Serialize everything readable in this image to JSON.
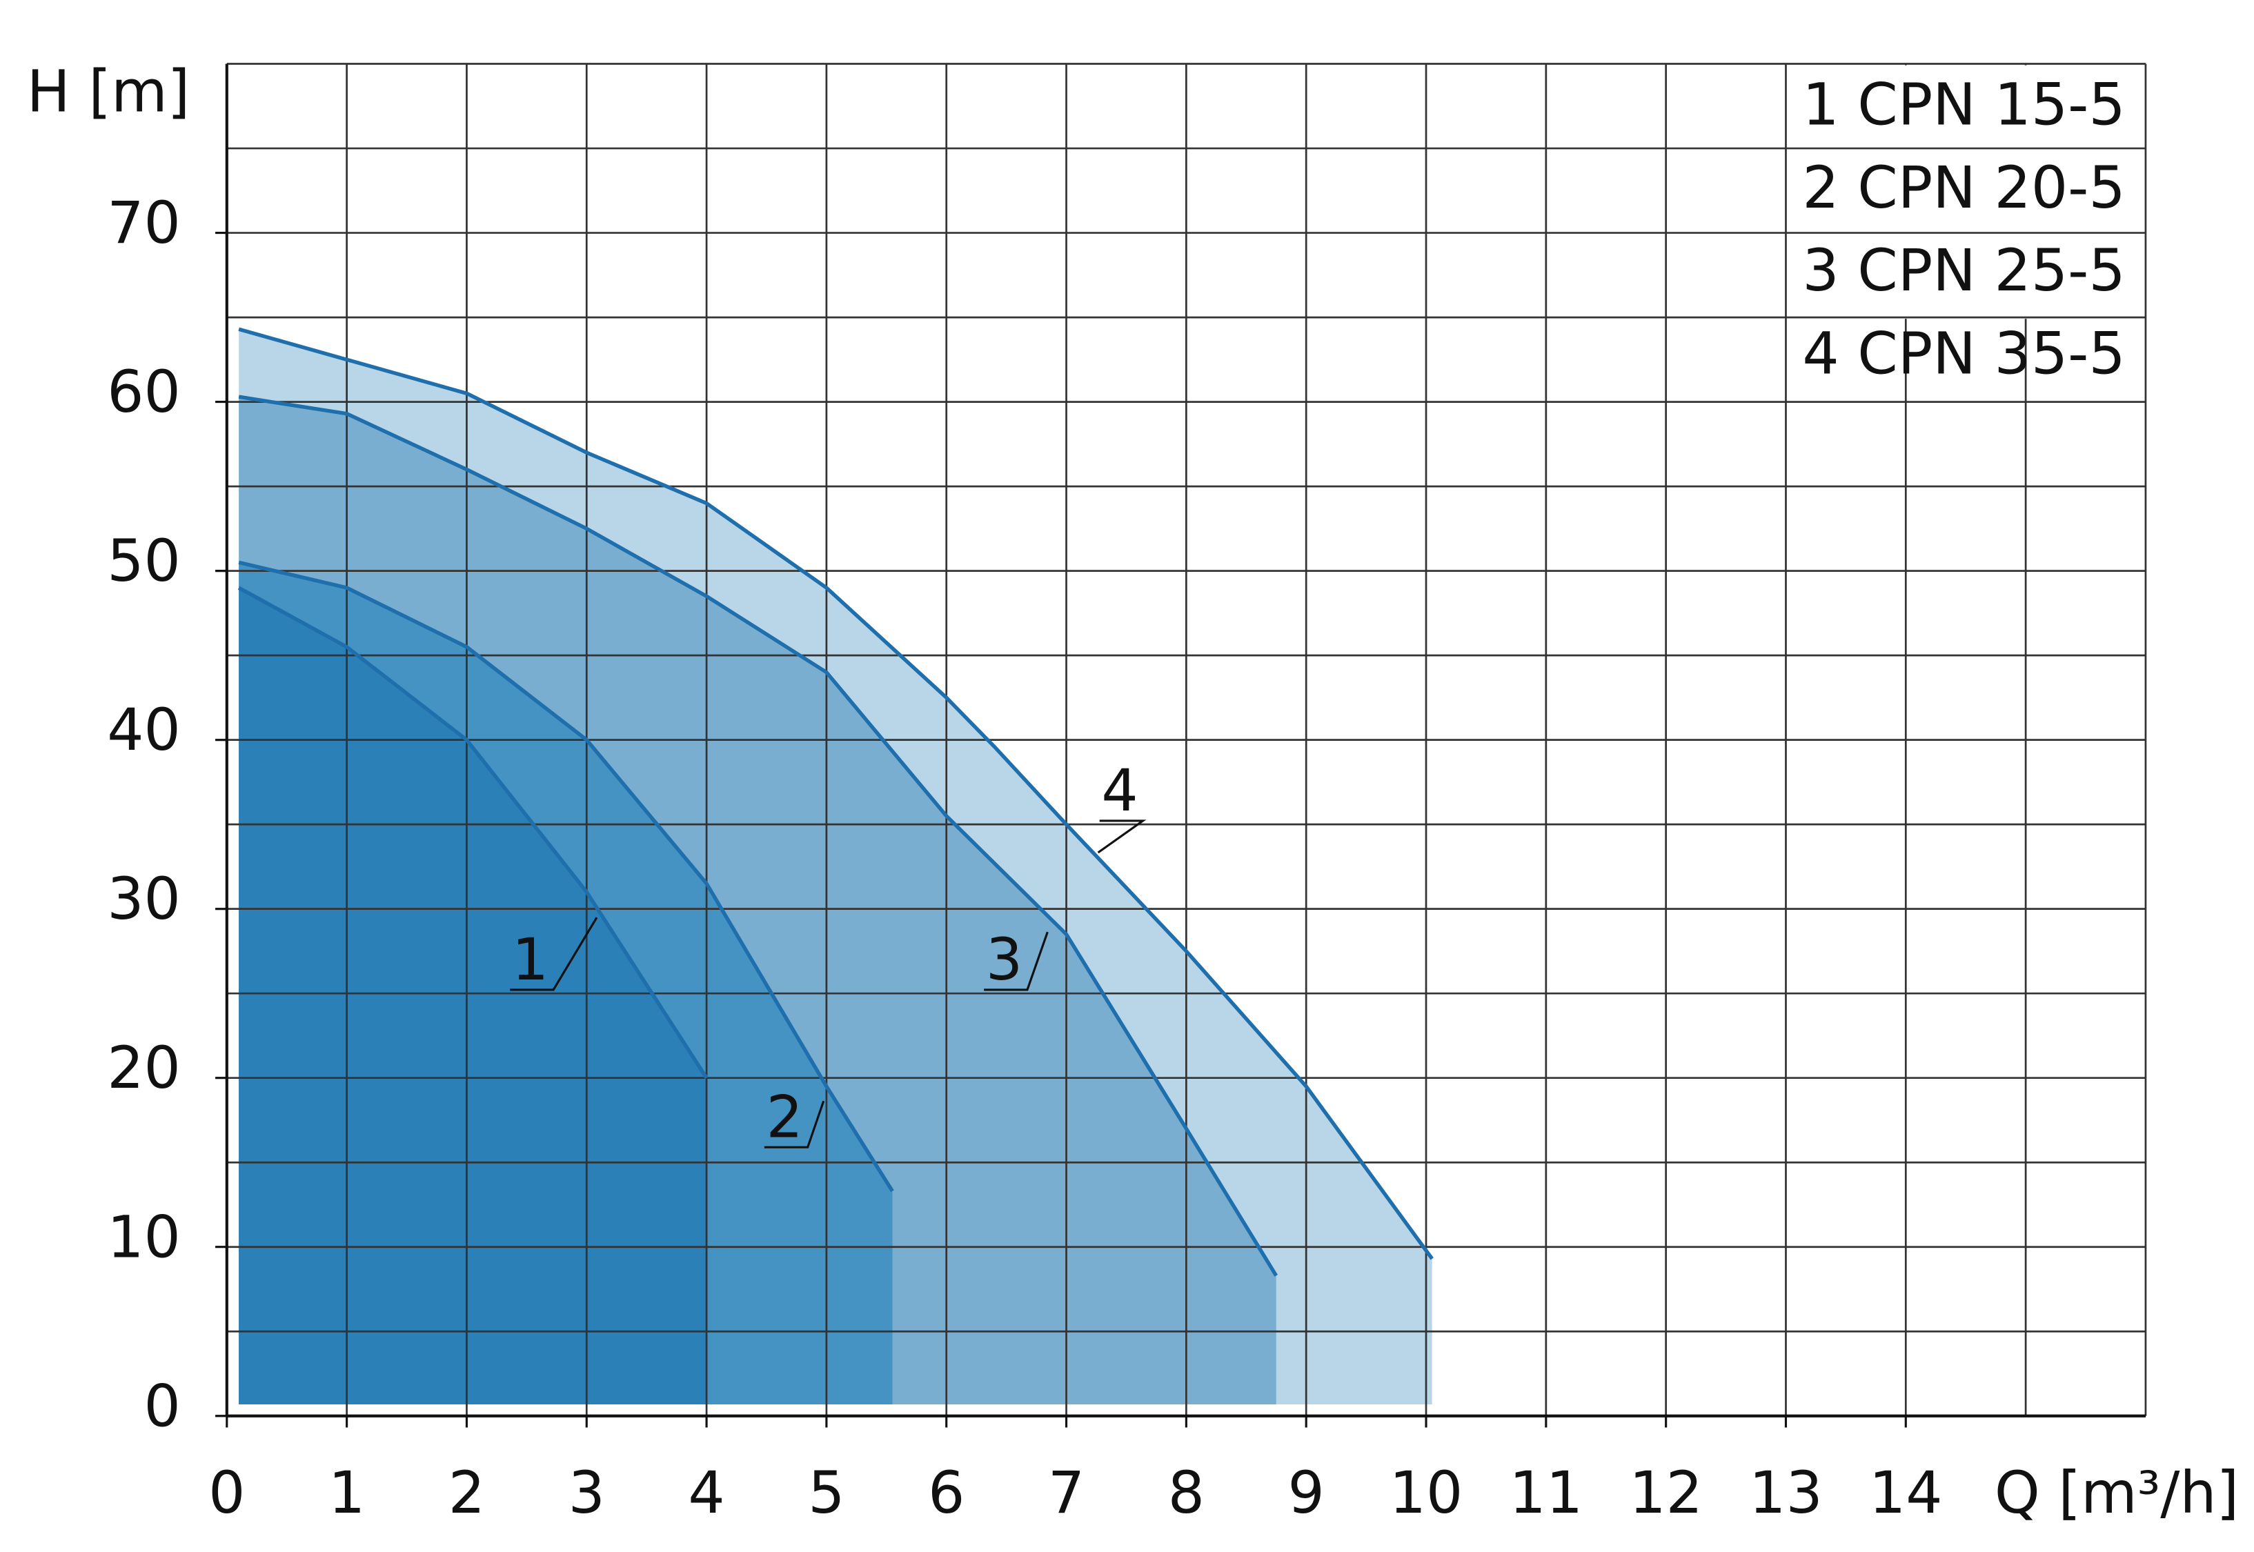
{
  "chart_data": {
    "type": "area",
    "y_label": "H [m]",
    "x_label": "Q [m³/h]",
    "xlim": [
      0,
      16
    ],
    "xticks": [
      0,
      1,
      2,
      3,
      4,
      5,
      6,
      7,
      8,
      9,
      10,
      11,
      12,
      13,
      14
    ],
    "xgrid": [
      0,
      1,
      2,
      3,
      4,
      5,
      6,
      7,
      8,
      9,
      10,
      11,
      12,
      13,
      14,
      15,
      16
    ],
    "ylim": [
      0,
      80
    ],
    "yticks": [
      0,
      10,
      20,
      30,
      40,
      50,
      60,
      70
    ],
    "ygrid": [
      0,
      5,
      10,
      15,
      20,
      25,
      30,
      35,
      40,
      45,
      50,
      55,
      60,
      65,
      70,
      75,
      80
    ],
    "grid": true,
    "legend": "top-right",
    "line_color": "#1f6fad",
    "series": [
      {
        "name": "1 CPN 15-5",
        "curve_label": "1",
        "color": "#2a80b7",
        "x": [
          0.1,
          1,
          2,
          3,
          4
        ],
        "values": [
          49,
          45.5,
          40,
          31,
          20
        ]
      },
      {
        "name": "2 CPN 20-5",
        "curve_label": "2",
        "color": "#4593c3",
        "x": [
          0.1,
          1,
          2,
          3,
          4,
          5,
          5.55
        ],
        "values": [
          50.5,
          49,
          45.5,
          40,
          31.5,
          19.5,
          13.3
        ]
      },
      {
        "name": "3 CPN 25-5",
        "curve_label": "3",
        "color": "#79aed1",
        "x": [
          0.1,
          1,
          2,
          3,
          4,
          5,
          6,
          7,
          8,
          8.75
        ],
        "values": [
          60.3,
          59.3,
          56,
          52.5,
          48.5,
          44,
          35.5,
          28.5,
          17,
          8.3
        ]
      },
      {
        "name": "4 CPN 35-5",
        "curve_label": "4",
        "color": "#b9d6e9",
        "x": [
          0.1,
          1,
          2,
          3,
          4,
          5,
          6,
          6.4,
          7,
          8,
          9,
          10.05
        ],
        "values": [
          64.3,
          62.5,
          60.5,
          57,
          54,
          49,
          42.5,
          39.6,
          35,
          27.5,
          19.5,
          9.3
        ]
      }
    ]
  }
}
